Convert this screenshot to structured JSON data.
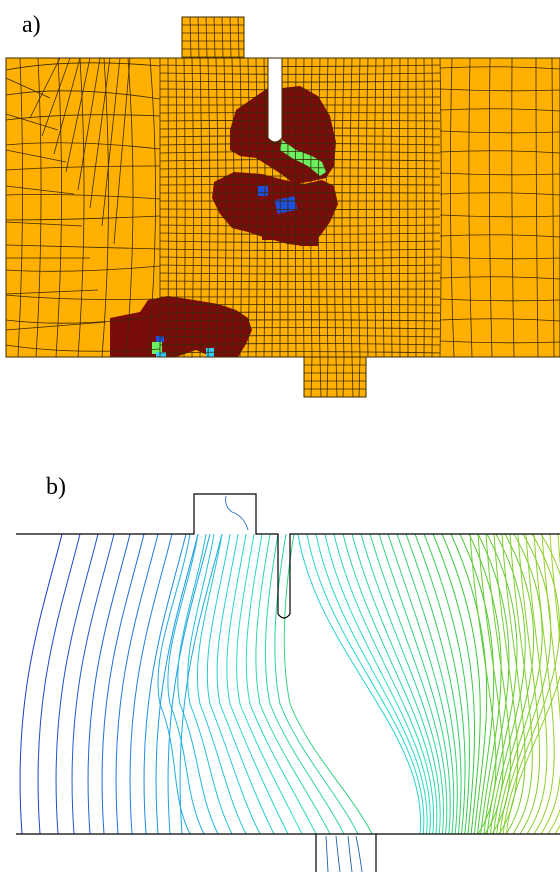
{
  "panels": {
    "a": {
      "label": "a)"
    },
    "b": {
      "label": "b)"
    }
  },
  "colors": {
    "mesh_fill": "#ffb000",
    "mesh_line": "#3a2a00",
    "damage": "#7b0c0c",
    "green": "#6af060",
    "blue": "#1f4fe0",
    "cyan": "#2fd0ff",
    "outline": "#000000"
  }
}
